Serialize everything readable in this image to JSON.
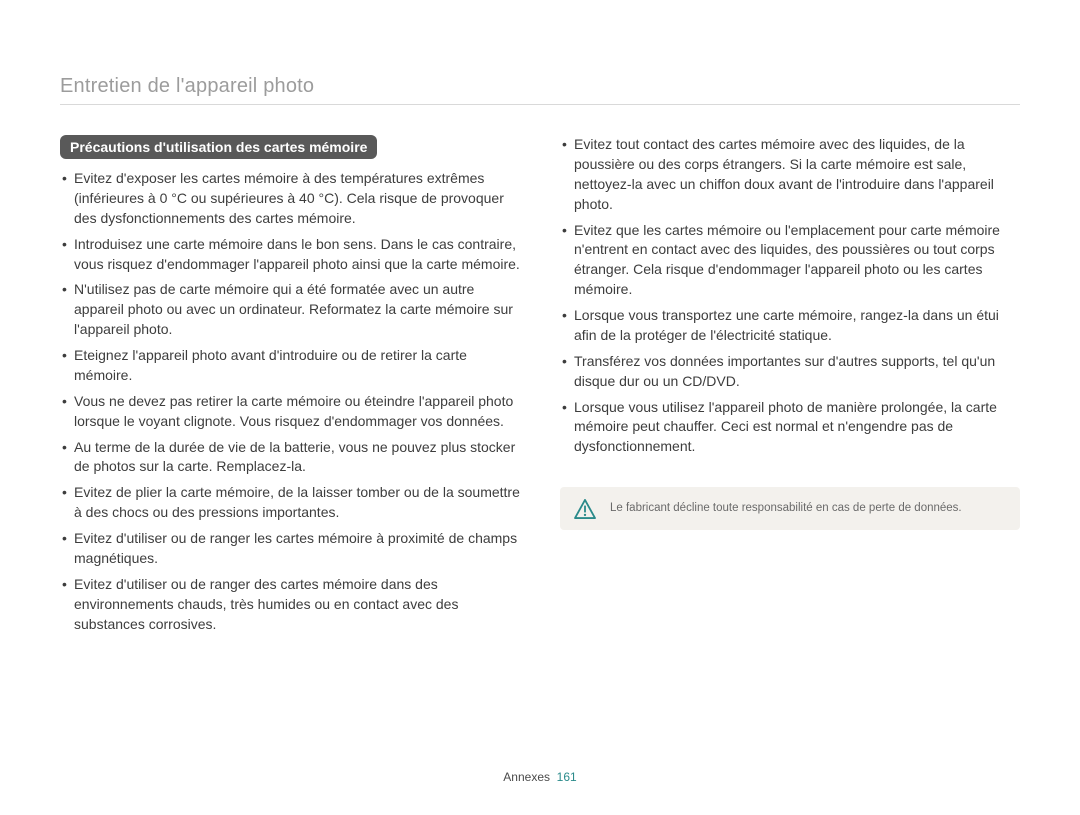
{
  "header": {
    "title": "Entretien de l'appareil photo"
  },
  "section": {
    "pill_label": "Précautions d'utilisation des cartes mémoire"
  },
  "left_bullets": [
    "Evitez d'exposer les cartes mémoire à des températures extrêmes (inférieures à 0 °C ou supérieures à 40 °C). Cela risque de provoquer des dysfonctionnements des cartes mémoire.",
    "Introduisez une carte mémoire dans le bon sens. Dans le cas contraire, vous risquez d'endommager l'appareil photo ainsi que la carte mémoire.",
    "N'utilisez pas de carte mémoire qui a été formatée avec un autre appareil photo ou avec un ordinateur. Reformatez la carte mémoire sur l'appareil photo.",
    "Eteignez l'appareil photo avant d'introduire ou de retirer la carte mémoire.",
    "Vous ne devez pas retirer la carte mémoire ou éteindre l'appareil photo lorsque le voyant clignote. Vous risquez d'endommager vos données.",
    "Au terme de la durée de vie de la batterie, vous ne pouvez plus stocker de photos sur la carte. Remplacez-la.",
    "Evitez de plier la carte mémoire, de la laisser tomber ou de la soumettre à des chocs ou des pressions importantes.",
    "Evitez d'utiliser ou de ranger les cartes mémoire à proximité de champs magnétiques.",
    "Evitez d'utiliser ou de ranger des cartes mémoire dans des environnements chauds, très humides ou en contact avec des substances corrosives."
  ],
  "right_bullets": [
    "Evitez tout contact des cartes mémoire avec des liquides, de la poussière ou des corps étrangers. Si la carte mémoire est sale, nettoyez-la avec un chiffon doux avant de l'introduire dans l'appareil photo.",
    "Evitez que les cartes mémoire ou l'emplacement pour carte mémoire n'entrent en contact avec des liquides, des poussières ou tout corps étranger. Cela risque d'endommager l'appareil photo ou les cartes mémoire.",
    "Lorsque vous transportez une carte mémoire, rangez-la dans un étui afin de la protéger de l'électricité statique.",
    "Transférez vos données importantes sur d'autres supports, tel qu'un disque dur ou un CD/DVD.",
    "Lorsque vous utilisez l'appareil photo de manière prolongée, la carte mémoire peut chauffer. Ceci est normal et n'engendre pas de dysfonctionnement."
  ],
  "notice": {
    "text": "Le fabricant décline toute responsabilité en cas de perte de données.",
    "icon_color": "#2a8a8a",
    "bg_color": "#f3f1ed"
  },
  "footer": {
    "section": "Annexes",
    "page_number": "161"
  },
  "colors": {
    "header_text": "#9c9c9c",
    "header_rule": "#d9d9d9",
    "pill_bg": "#595959",
    "pill_text": "#ffffff",
    "body_text": "#3d3d3d",
    "notice_text": "#6a6a6a",
    "page_number": "#2a8a8a",
    "background": "#ffffff"
  },
  "typography": {
    "header_fontsize_pt": 15,
    "pill_fontsize_pt": 10.5,
    "body_fontsize_pt": 10.5,
    "notice_fontsize_pt": 8.5,
    "footer_fontsize_pt": 9
  }
}
